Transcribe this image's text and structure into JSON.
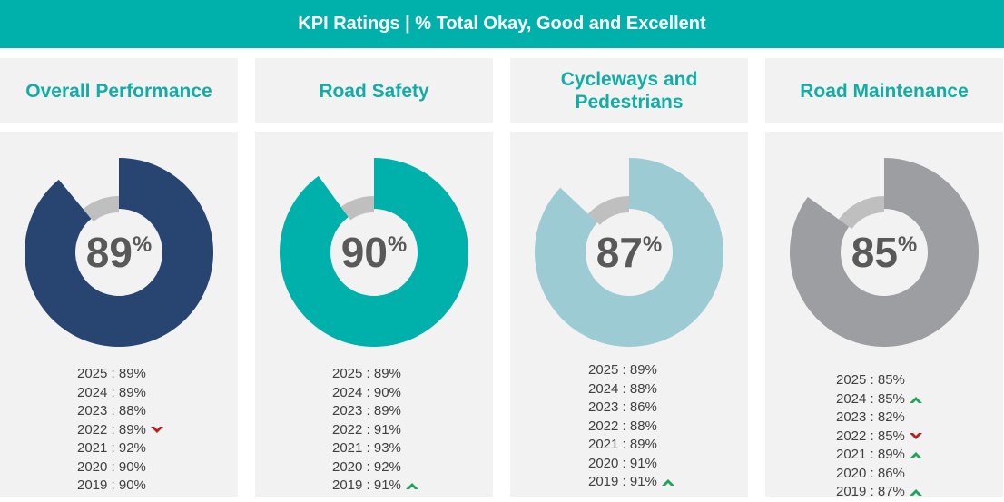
{
  "banner": {
    "title": "KPI Ratings | % Total Okay, Good and Excellent"
  },
  "colors": {
    "banner": "#00b0aa",
    "title_text": "#14ada6",
    "track": "#bfbfbf",
    "up": "#1fa35a",
    "down": "#b41f1f"
  },
  "chart_data": [
    {
      "type": "pie",
      "title": "Overall Performance",
      "value": 89,
      "center_number": "89",
      "center_unit": "%",
      "color": "#284470",
      "history": [
        {
          "label": "2025 : 89%",
          "trend": ""
        },
        {
          "label": "2024 : 89%",
          "trend": ""
        },
        {
          "label": "2023 : 88%",
          "trend": ""
        },
        {
          "label": "2022 : 89%",
          "trend": "down"
        },
        {
          "label": "2021 : 92%",
          "trend": ""
        },
        {
          "label": "2020 : 90%",
          "trend": ""
        },
        {
          "label": "2019 : 90%",
          "trend": ""
        }
      ]
    },
    {
      "type": "pie",
      "title": "Road Safety",
      "value": 90,
      "center_number": "90",
      "center_unit": "%",
      "color": "#00b0aa",
      "history": [
        {
          "label": "2025 : 89%",
          "trend": ""
        },
        {
          "label": "2024 : 90%",
          "trend": ""
        },
        {
          "label": "2023 : 89%",
          "trend": ""
        },
        {
          "label": "2022 : 91%",
          "trend": ""
        },
        {
          "label": "2021 : 93%",
          "trend": ""
        },
        {
          "label": "2020 : 92%",
          "trend": ""
        },
        {
          "label": "2019 : 91%",
          "trend": "up"
        }
      ]
    },
    {
      "type": "pie",
      "title": "Cycleways and Pedestrians",
      "value": 87,
      "center_number": "87",
      "center_unit": "%",
      "color": "#9ccbd3",
      "history": [
        {
          "label": "2025 : 89%",
          "trend": ""
        },
        {
          "label": "2024 : 88%",
          "trend": ""
        },
        {
          "label": "2023 : 86%",
          "trend": ""
        },
        {
          "label": "2022 : 88%",
          "trend": ""
        },
        {
          "label": "2021 : 89%",
          "trend": ""
        },
        {
          "label": "2020 : 91%",
          "trend": ""
        },
        {
          "label": "2019 : 91%",
          "trend": "up"
        }
      ]
    },
    {
      "type": "pie",
      "title": "Road Maintenance",
      "value": 85,
      "center_number": "85",
      "center_unit": "%",
      "color": "#9d9ea2",
      "history": [
        {
          "label": "2025 : 85%",
          "trend": ""
        },
        {
          "label": "2024 : 85%",
          "trend": "up"
        },
        {
          "label": "2023 : 82%",
          "trend": ""
        },
        {
          "label": "2022 : 85%",
          "trend": "down"
        },
        {
          "label": "2021 : 89%",
          "trend": "up"
        },
        {
          "label": "2020 : 86%",
          "trend": ""
        },
        {
          "label": "2019 : 87%",
          "trend": "up"
        }
      ]
    }
  ]
}
